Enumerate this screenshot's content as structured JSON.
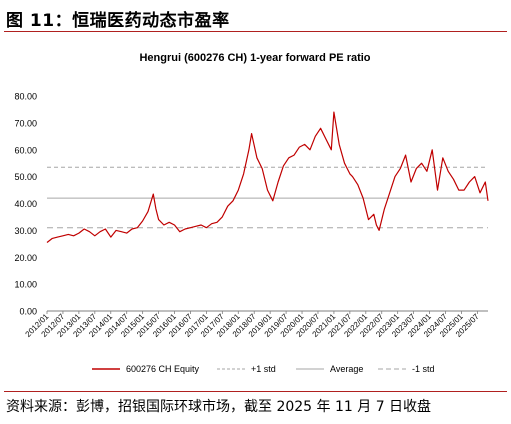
{
  "figure_title": "图 11：恒瑞医药动态市盈率",
  "source": "资料来源：彭博，招银国际环球市场，截至 2025 年 11 月 7 日收盘",
  "chart_data": {
    "type": "line",
    "title": "Hengrui (600276 CH) 1-year forward PE ratio",
    "xlabel": "",
    "ylabel": "",
    "ylim": [
      0,
      80
    ],
    "y_ticks": [
      "0.00",
      "10.00",
      "20.00",
      "30.00",
      "40.00",
      "50.00",
      "60.00",
      "70.00",
      "80.00"
    ],
    "x_ticks": [
      "2012/01",
      "2012/07",
      "2013/01",
      "2013/07",
      "2014/01",
      "2014/07",
      "2015/01",
      "2015/07",
      "2016/01",
      "2016/07",
      "2017/01",
      "2017/07",
      "2018/01",
      "2018/07",
      "2019/01",
      "2019/07",
      "2020/01",
      "2020/07",
      "2021/01",
      "2021/07",
      "2022/01",
      "2022/07",
      "2023/01",
      "2023/07",
      "2024/01",
      "2024/07",
      "2025/01",
      "2025/07"
    ],
    "x_range": [
      "2012/01",
      "2025/11"
    ],
    "grid": false,
    "legend_position": "bottom",
    "colors": {
      "series": "#c00000",
      "plus_std": "#a6a6a6",
      "average": "#a6a6a6",
      "minus_std": "#a6a6a6",
      "title_rule": "#b0201f"
    },
    "series": [
      {
        "name": "600276 CH Equity",
        "x": [
          "2012/01",
          "2012/03",
          "2012/05",
          "2012/07",
          "2012/09",
          "2012/11",
          "2013/01",
          "2013/03",
          "2013/05",
          "2013/07",
          "2013/09",
          "2013/11",
          "2014/01",
          "2014/03",
          "2014/05",
          "2014/07",
          "2014/09",
          "2014/11",
          "2015/01",
          "2015/03",
          "2015/05",
          "2015/06",
          "2015/07",
          "2015/09",
          "2015/11",
          "2016/01",
          "2016/03",
          "2016/05",
          "2016/07",
          "2016/09",
          "2016/11",
          "2017/01",
          "2017/03",
          "2017/05",
          "2017/07",
          "2017/09",
          "2017/11",
          "2018/01",
          "2018/03",
          "2018/05",
          "2018/06",
          "2018/08",
          "2018/10",
          "2018/12",
          "2019/02",
          "2019/04",
          "2019/06",
          "2019/08",
          "2019/10",
          "2019/12",
          "2020/02",
          "2020/04",
          "2020/06",
          "2020/08",
          "2020/10",
          "2020/12",
          "2021/01",
          "2021/03",
          "2021/05",
          "2021/07",
          "2021/08",
          "2021/10",
          "2021/12",
          "2022/02",
          "2022/04",
          "2022/05",
          "2022/06",
          "2022/08",
          "2022/10",
          "2022/12",
          "2023/02",
          "2023/04",
          "2023/06",
          "2023/08",
          "2023/10",
          "2023/12",
          "2024/02",
          "2024/04",
          "2024/06",
          "2024/08",
          "2024/10",
          "2024/12",
          "2025/02",
          "2025/04",
          "2025/06",
          "2025/08",
          "2025/10",
          "2025/11"
        ],
        "values": [
          25.5,
          27,
          27.5,
          28,
          28.5,
          28,
          29,
          30.5,
          29.5,
          28,
          29.5,
          30.5,
          27.5,
          30,
          29.5,
          29,
          30.5,
          31,
          33.5,
          37,
          43.5,
          38,
          34,
          32,
          33,
          32,
          29.5,
          30.5,
          31,
          31.5,
          32,
          31,
          32.5,
          33,
          35,
          39,
          41,
          45,
          51,
          60,
          66,
          57,
          53,
          45,
          41,
          48,
          54,
          57,
          58,
          61,
          62,
          60,
          65,
          68,
          64,
          60,
          74,
          62,
          55,
          51,
          50,
          47,
          42,
          34,
          36,
          32,
          30,
          38,
          44,
          50,
          53,
          58,
          48,
          53,
          55,
          52,
          60,
          45,
          57,
          52,
          49,
          45,
          45,
          48,
          50,
          44,
          48,
          41
        ]
      },
      {
        "name": "+1 std",
        "values": [
          53.5,
          53.5
        ]
      },
      {
        "name": "Average",
        "values": [
          42,
          42
        ]
      },
      {
        "name": "-1 std",
        "values": [
          31,
          31
        ]
      }
    ]
  }
}
